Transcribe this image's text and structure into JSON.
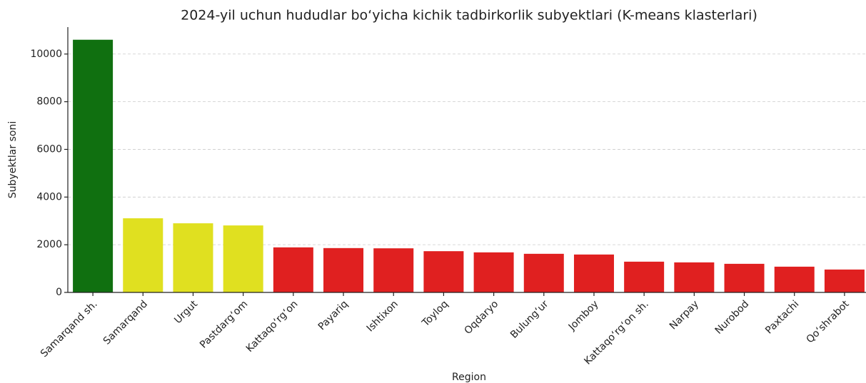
{
  "chart_data": {
    "type": "bar",
    "title": "2024-yil uchun hududlar bo‘yicha kichik tadbirkorlik subyektlari (K-means klasterlari)",
    "x_label": "Region",
    "y_label": "Subyektlar soni",
    "categories": [
      "Samarqand sh.",
      "Samarqand",
      "Urgut",
      "Pastdarg‘om",
      "Kattaqo‘rg‘on",
      "Payariq",
      "Ishtixon",
      "Toyloq",
      "Oqdaryo",
      "Bulung‘ur",
      "Jomboy",
      "Kattaqo‘rg‘on sh.",
      "Narpay",
      "Nurobod",
      "Paxtachi",
      "Qo‘shrabot"
    ],
    "values": [
      10600,
      3110,
      2900,
      2810,
      1890,
      1860,
      1850,
      1730,
      1680,
      1620,
      1590,
      1290,
      1260,
      1200,
      1080,
      960
    ],
    "colors": [
      "#107010",
      "#e0e020",
      "#e0e020",
      "#e0e020",
      "#e02020",
      "#e02020",
      "#e02020",
      "#e02020",
      "#e02020",
      "#e02020",
      "#e02020",
      "#e02020",
      "#e02020",
      "#e02020",
      "#e02020",
      "#e02020"
    ],
    "ylim": [
      0,
      11130
    ],
    "yticks": [
      0,
      2000,
      4000,
      6000,
      8000,
      10000
    ],
    "grid": true
  }
}
